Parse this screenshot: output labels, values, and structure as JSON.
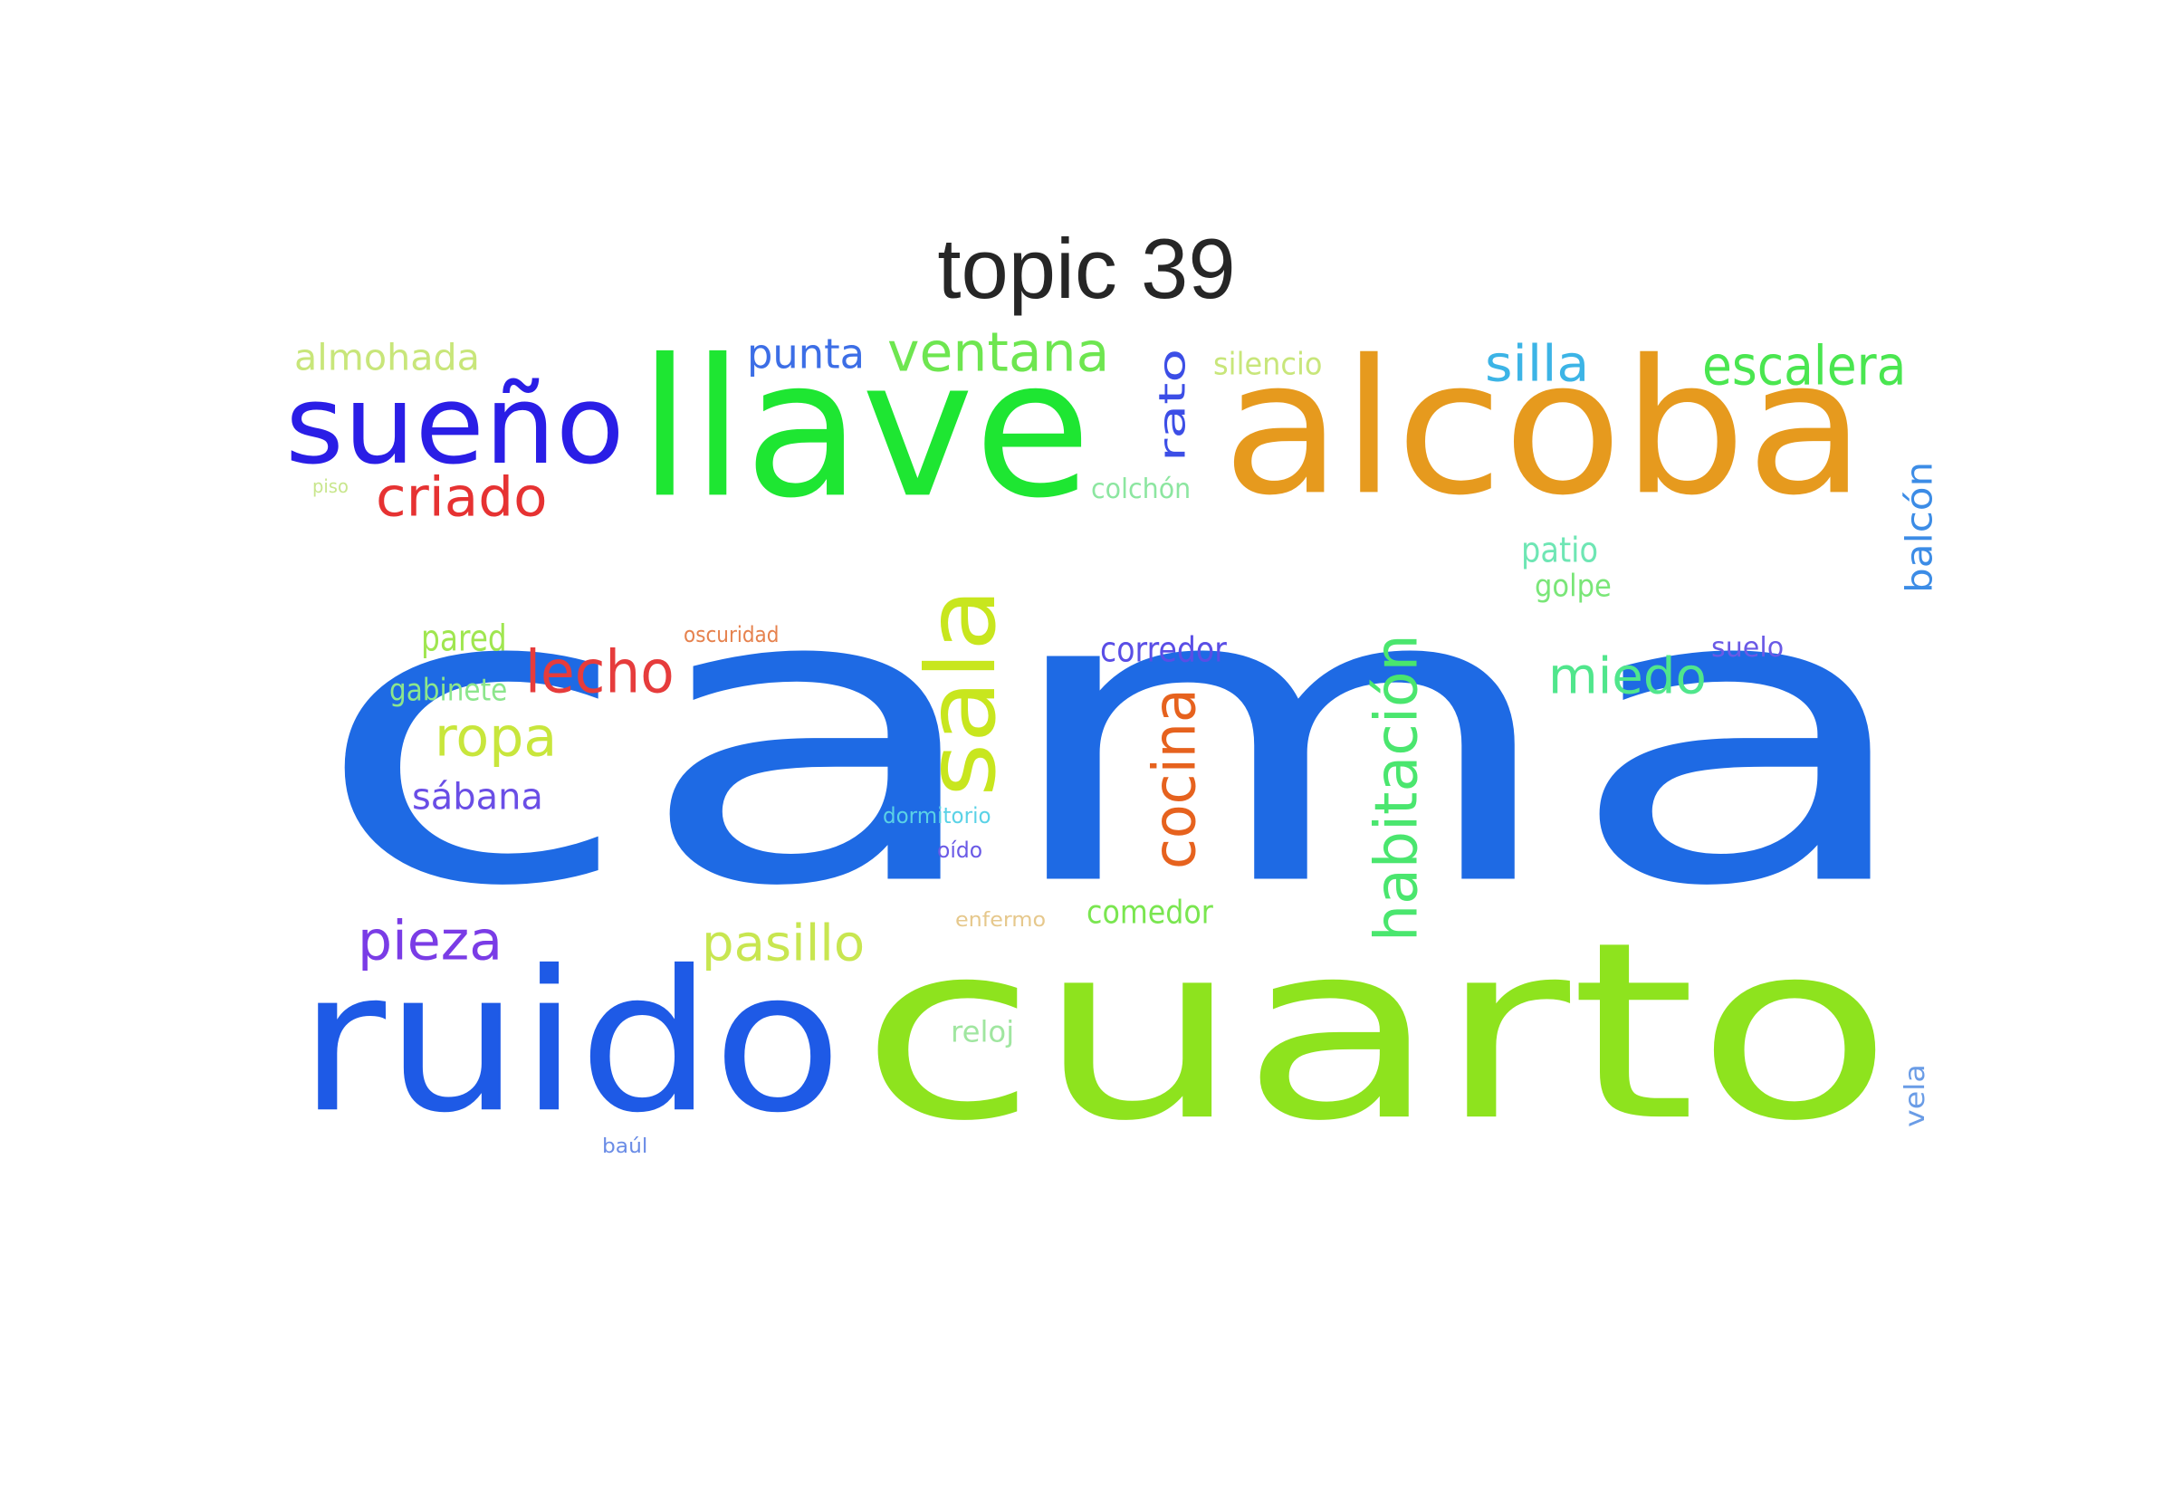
{
  "title": "topic 39",
  "words": [
    {
      "text": "cama",
      "color": "#1e6ae4"
    },
    {
      "text": "cuarto",
      "color": "#8ee31e"
    },
    {
      "text": "alcoba",
      "color": "#e69a1e"
    },
    {
      "text": "llave",
      "color": "#1ee632"
    },
    {
      "text": "ruido",
      "color": "#1e5ae6"
    },
    {
      "text": "sueño",
      "color": "#2a1ee6"
    },
    {
      "text": "sala",
      "color": "#c8e61e"
    },
    {
      "text": "habitación",
      "color": "#4ae66e"
    },
    {
      "text": "cocina",
      "color": "#e6621e"
    },
    {
      "text": "ventana",
      "color": "#6ee650"
    },
    {
      "text": "escalera",
      "color": "#4ae650"
    },
    {
      "text": "criado",
      "color": "#e63232"
    },
    {
      "text": "lecho",
      "color": "#e63c3c"
    },
    {
      "text": "ropa",
      "color": "#c8e63c"
    },
    {
      "text": "pieza",
      "color": "#7a3ce6"
    },
    {
      "text": "pasillo",
      "color": "#c8e650"
    },
    {
      "text": "miedo",
      "color": "#50e68c"
    },
    {
      "text": "silla",
      "color": "#3cb4e6"
    },
    {
      "text": "punta",
      "color": "#3c6ee6"
    },
    {
      "text": "rato",
      "color": "#3c4ee6"
    },
    {
      "text": "balcón",
      "color": "#3c8ce6"
    },
    {
      "text": "almohada",
      "color": "#c8e67a"
    },
    {
      "text": "sábana",
      "color": "#6a4ee6"
    },
    {
      "text": "pared",
      "color": "#a0e650"
    },
    {
      "text": "corredor",
      "color": "#5a4ee6"
    },
    {
      "text": "comedor",
      "color": "#7ae650"
    },
    {
      "text": "patio",
      "color": "#6ee6b4"
    },
    {
      "text": "golpe",
      "color": "#7ae678"
    },
    {
      "text": "gabinete",
      "color": "#8ce68c"
    },
    {
      "text": "silencio",
      "color": "#c8e67a"
    },
    {
      "text": "colchón",
      "color": "#8ce6a0"
    },
    {
      "text": "suelo",
      "color": "#6a5ae6"
    },
    {
      "text": "reloj",
      "color": "#a0e6a0"
    },
    {
      "text": "vela",
      "color": "#6a9ce6"
    },
    {
      "text": "oscuridad",
      "color": "#e6824e"
    },
    {
      "text": "dormitorio",
      "color": "#5ad2e6"
    },
    {
      "text": "oído",
      "color": "#6a5ae6"
    },
    {
      "text": "enfermo",
      "color": "#e6c88c"
    },
    {
      "text": "piso",
      "color": "#c8e68c"
    },
    {
      "text": "baúl",
      "color": "#6a8ce6"
    }
  ]
}
